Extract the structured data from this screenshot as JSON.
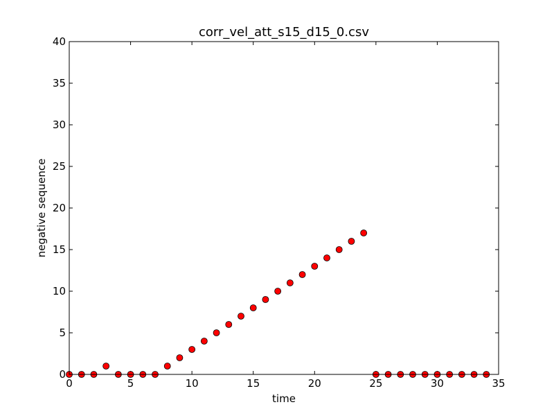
{
  "chart_data": {
    "type": "scatter",
    "title": "corr_vel_att_s15_d15_0.csv",
    "xlabel": "time",
    "ylabel": "negative sequence",
    "xlim": [
      0,
      35
    ],
    "ylim": [
      0,
      40
    ],
    "xticks": [
      0,
      5,
      10,
      15,
      20,
      25,
      30,
      35
    ],
    "yticks": [
      0,
      5,
      10,
      15,
      20,
      25,
      30,
      35,
      40
    ],
    "grid": false,
    "marker_color": "#ff0000",
    "marker_edge_color": "#000000",
    "series": [
      {
        "x": [
          0,
          1,
          2,
          3,
          4,
          5,
          6,
          7,
          8,
          9,
          10,
          11,
          12,
          13,
          14,
          15,
          16,
          17,
          18,
          19,
          20,
          21,
          22,
          23,
          24,
          25,
          26,
          27,
          28,
          29,
          30,
          31,
          32,
          33,
          34
        ],
        "y": [
          0,
          0,
          0,
          1,
          0,
          0,
          0,
          0,
          1,
          2,
          3,
          4,
          5,
          6,
          7,
          8,
          9,
          10,
          11,
          12,
          13,
          14,
          15,
          16,
          17,
          0,
          0,
          0,
          0,
          0,
          0,
          0,
          0,
          0,
          0
        ]
      }
    ]
  }
}
